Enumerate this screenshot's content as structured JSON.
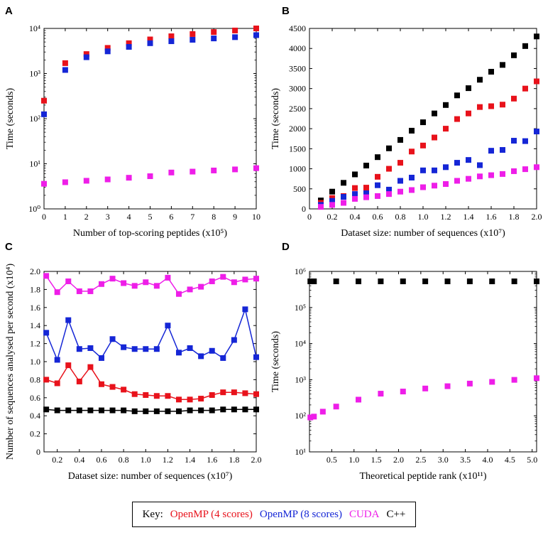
{
  "key": {
    "label": "Key:",
    "entries": [
      {
        "name": "OpenMP (4 scores)",
        "color": "#e8121b"
      },
      {
        "name": "OpenMP (8 scores)",
        "color": "#1526d6"
      },
      {
        "name": "CUDA",
        "color": "#ee1ee8"
      },
      {
        "name": "C++",
        "color": "#000000"
      }
    ]
  },
  "chart_data": [
    {
      "panel": "A",
      "type": "scatter",
      "yscale": "log",
      "xlabel": "Number of top-scoring peptides (x10⁵)",
      "ylabel": "Time (seconds)",
      "xlim": [
        0,
        10
      ],
      "ylim": [
        1,
        10000
      ],
      "xticks": [
        "0",
        "1",
        "2",
        "3",
        "4",
        "5",
        "6",
        "7",
        "8",
        "9",
        "10"
      ],
      "yticks": [
        "10⁰",
        "10¹",
        "10²",
        "10³",
        "10⁴"
      ],
      "x": [
        0,
        1,
        2,
        3,
        4,
        5,
        6,
        7,
        8,
        9,
        10
      ],
      "series": [
        {
          "name": "OpenMP (4 scores)",
          "color": "#e8121b",
          "values": [
            250,
            1700,
            2700,
            3700,
            4700,
            5700,
            6700,
            7500,
            8300,
            9000,
            10000
          ]
        },
        {
          "name": "OpenMP (8 scores)",
          "color": "#1526d6",
          "values": [
            125,
            1200,
            2300,
            3100,
            3900,
            4700,
            5200,
            5600,
            6000,
            6400,
            7100
          ]
        },
        {
          "name": "CUDA",
          "color": "#ee1ee8",
          "values": [
            3.6,
            3.9,
            4.2,
            4.5,
            4.9,
            5.3,
            6.4,
            6.7,
            7.1,
            7.5,
            8.0
          ]
        }
      ]
    },
    {
      "panel": "B",
      "type": "scatter",
      "yscale": "linear",
      "xlabel": "Dataset size: number of sequences (x10⁷)",
      "ylabel": "Time (seconds)",
      "xlim": [
        0,
        2.0
      ],
      "ylim": [
        0,
        4500
      ],
      "xticks": [
        "0",
        "0.2",
        "0.4",
        "0.6",
        "0.8",
        "1.0",
        "1.2",
        "1.4",
        "1.6",
        "1.8",
        "2.0"
      ],
      "yticks": [
        "0",
        "500",
        "1000",
        "1500",
        "2000",
        "2500",
        "3000",
        "3500",
        "4000",
        "4500"
      ],
      "x": [
        0.1,
        0.2,
        0.3,
        0.4,
        0.5,
        0.6,
        0.7,
        0.8,
        0.9,
        1.0,
        1.1,
        1.2,
        1.3,
        1.4,
        1.5,
        1.6,
        1.7,
        1.8,
        1.9,
        2.0
      ],
      "series": [
        {
          "name": "C++",
          "color": "#000000",
          "values": [
            210,
            430,
            650,
            860,
            1080,
            1290,
            1510,
            1720,
            1950,
            2160,
            2380,
            2590,
            2830,
            3010,
            3220,
            3420,
            3590,
            3830,
            4060,
            4300
          ]
        },
        {
          "name": "OpenMP (4 scores)",
          "color": "#e8121b",
          "values": [
            150,
            270,
            320,
            520,
            530,
            800,
            1000,
            1150,
            1430,
            1580,
            1780,
            2000,
            2240,
            2380,
            2540,
            2560,
            2600,
            2750,
            3000,
            3180
          ]
        },
        {
          "name": "OpenMP (8 scores)",
          "color": "#1526d6",
          "values": [
            100,
            200,
            300,
            370,
            390,
            590,
            480,
            700,
            780,
            960,
            960,
            1040,
            1150,
            1220,
            1090,
            1450,
            1470,
            1700,
            1690,
            1930
          ]
        },
        {
          "name": "CUDA",
          "color": "#ee1ee8",
          "values": [
            50,
            100,
            150,
            250,
            290,
            320,
            370,
            430,
            470,
            540,
            580,
            620,
            700,
            750,
            810,
            840,
            870,
            940,
            990,
            1040
          ]
        }
      ]
    },
    {
      "panel": "C",
      "type": "line",
      "yscale": "linear",
      "xlabel": "Dataset size: number of sequences (x10⁷)",
      "ylabel": "Number of sequences analysed per second (x10⁴)",
      "xlim": [
        0.08,
        2.0
      ],
      "ylim": [
        0,
        2.0
      ],
      "xticks": [
        "0.2",
        "0.4",
        "0.6",
        "0.8",
        "1.0",
        "1.2",
        "1.4",
        "1.6",
        "1.8",
        "2.0"
      ],
      "yticks": [
        "0",
        "0.2",
        "0.4",
        "0.6",
        "0.8",
        "1.0",
        "1.2",
        "1.4",
        "1.6",
        "1.8",
        "2.0"
      ],
      "x": [
        0.1,
        0.2,
        0.3,
        0.4,
        0.5,
        0.6,
        0.7,
        0.8,
        0.9,
        1.0,
        1.1,
        1.2,
        1.3,
        1.4,
        1.5,
        1.6,
        1.7,
        1.8,
        1.9,
        2.0
      ],
      "series": [
        {
          "name": "CUDA",
          "color": "#ee1ee8",
          "values": [
            1.95,
            1.77,
            1.89,
            1.78,
            1.78,
            1.86,
            1.92,
            1.87,
            1.84,
            1.88,
            1.84,
            1.93,
            1.75,
            1.8,
            1.83,
            1.89,
            1.94,
            1.88,
            1.91,
            1.92
          ]
        },
        {
          "name": "OpenMP (8 scores)",
          "color": "#1526d6",
          "values": [
            1.32,
            1.02,
            1.46,
            1.14,
            1.15,
            1.04,
            1.25,
            1.16,
            1.14,
            1.14,
            1.14,
            1.4,
            1.1,
            1.15,
            1.06,
            1.12,
            1.04,
            1.24,
            1.58,
            1.05
          ]
        },
        {
          "name": "OpenMP (4 scores)",
          "color": "#e8121b",
          "values": [
            0.8,
            0.76,
            0.96,
            0.78,
            0.94,
            0.75,
            0.72,
            0.69,
            0.64,
            0.63,
            0.62,
            0.62,
            0.58,
            0.58,
            0.59,
            0.63,
            0.66,
            0.66,
            0.65,
            0.64
          ]
        },
        {
          "name": "C++",
          "color": "#000000",
          "values": [
            0.47,
            0.46,
            0.46,
            0.46,
            0.46,
            0.46,
            0.46,
            0.46,
            0.45,
            0.45,
            0.45,
            0.45,
            0.45,
            0.46,
            0.46,
            0.46,
            0.47,
            0.47,
            0.47,
            0.47
          ]
        }
      ]
    },
    {
      "panel": "D",
      "type": "scatter",
      "yscale": "log",
      "xlabel": "Theoretical peptide rank (x10¹¹)",
      "ylabel": "Time (seconds)",
      "xlim": [
        0,
        5.1
      ],
      "ylim": [
        10,
        1000000
      ],
      "xticks": [
        "0.5",
        "1.0",
        "1.5",
        "2.0",
        "2.5",
        "3.0",
        "3.5",
        "4.0",
        "4.5",
        "5.0"
      ],
      "xtick_values": [
        0.5,
        1.0,
        1.5,
        2.0,
        2.5,
        3.0,
        3.5,
        4.0,
        4.5,
        5.0
      ],
      "yticks": [
        "10¹",
        "10²",
        "10³",
        "10⁴",
        "10⁵",
        "10⁶"
      ],
      "series": [
        {
          "name": "C++",
          "color": "#000000",
          "x": [
            0.02,
            0.1,
            0.6,
            1.1,
            1.6,
            2.1,
            2.6,
            3.1,
            3.6,
            4.1,
            4.6,
            5.1
          ],
          "values": [
            530000,
            530000,
            530000,
            530000,
            530000,
            530000,
            530000,
            530000,
            530000,
            530000,
            530000,
            530000
          ]
        },
        {
          "name": "CUDA",
          "color": "#ee1ee8",
          "x": [
            0.02,
            0.1,
            0.3,
            0.6,
            1.1,
            1.6,
            2.1,
            2.6,
            3.1,
            3.6,
            4.1,
            4.6,
            5.1
          ],
          "values": [
            90,
            95,
            130,
            180,
            280,
            410,
            470,
            570,
            660,
            780,
            870,
            990,
            1100
          ]
        }
      ]
    }
  ]
}
